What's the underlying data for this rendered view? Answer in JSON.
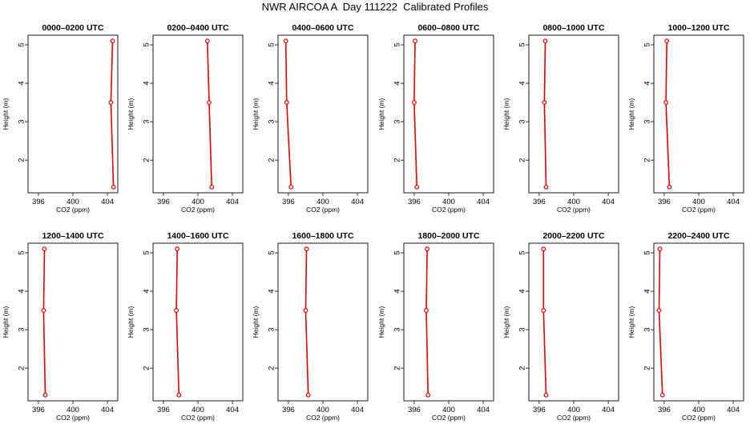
{
  "title": "NWR AIRCOA A  Day 111222  Calibrated Profiles",
  "chart_data": {
    "type": "line",
    "xlabel": "CO2 (ppm)",
    "ylabel": "Height (m)",
    "xlim": [
      394.8,
      405.2
    ],
    "ylim": [
      1.15,
      5.25
    ],
    "xticks": [
      396,
      400,
      404
    ],
    "yticks": [
      2,
      3,
      4,
      5
    ],
    "line_color": "#dd0000",
    "heights": [
      5.1,
      3.5,
      1.3
    ],
    "panels": [
      {
        "title": "0000–0200 UTC",
        "co2": [
          404.6,
          404.4,
          404.7
        ]
      },
      {
        "title": "0200–0400 UTC",
        "co2": [
          401.1,
          401.3,
          401.6
        ]
      },
      {
        "title": "0400–0600 UTC",
        "co2": [
          395.7,
          395.8,
          396.3
        ]
      },
      {
        "title": "0600–0800 UTC",
        "co2": [
          396.1,
          396.0,
          396.3
        ]
      },
      {
        "title": "0800–1000 UTC",
        "co2": [
          396.7,
          396.6,
          396.8
        ]
      },
      {
        "title": "1000–1200 UTC",
        "co2": [
          396.3,
          396.2,
          396.6
        ]
      },
      {
        "title": "1200–1400 UTC",
        "co2": [
          396.7,
          396.6,
          396.8
        ]
      },
      {
        "title": "1400–1600 UTC",
        "co2": [
          397.6,
          397.5,
          397.8
        ]
      },
      {
        "title": "1600–1800 UTC",
        "co2": [
          398.1,
          398.0,
          398.3
        ]
      },
      {
        "title": "1800–2000 UTC",
        "co2": [
          397.5,
          397.4,
          397.6
        ]
      },
      {
        "title": "2000–2200 UTC",
        "co2": [
          396.5,
          396.5,
          396.8
        ]
      },
      {
        "title": "2200–2400 UTC",
        "co2": [
          395.5,
          395.4,
          395.8
        ]
      }
    ]
  }
}
